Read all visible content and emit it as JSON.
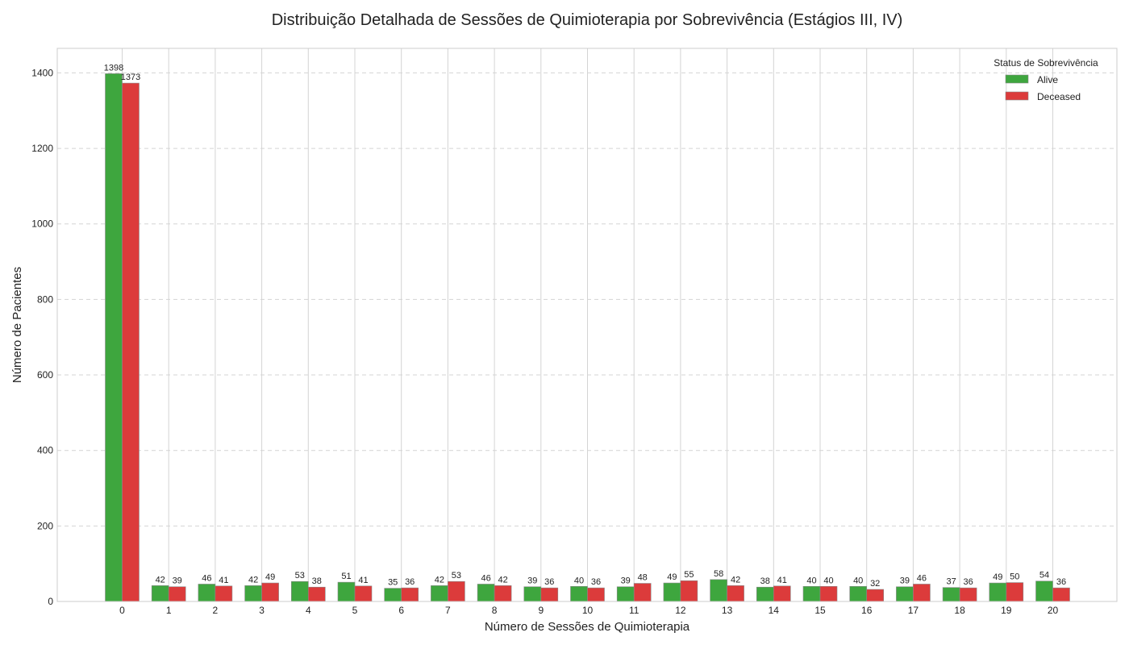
{
  "chart_data": {
    "type": "bar",
    "title": "Distribuição Detalhada de Sessões de Quimioterapia por Sobrevivência (Estágios III, IV)",
    "xlabel": "Número de Sessões de Quimioterapia",
    "ylabel": "Número de Pacientes",
    "categories": [
      "0",
      "1",
      "2",
      "3",
      "4",
      "5",
      "6",
      "7",
      "8",
      "9",
      "10",
      "11",
      "12",
      "13",
      "14",
      "15",
      "16",
      "17",
      "18",
      "19",
      "20"
    ],
    "series": [
      {
        "name": "Alive",
        "color": "#3ea63e",
        "values": [
          1398,
          42,
          46,
          42,
          53,
          51,
          35,
          42,
          46,
          39,
          40,
          39,
          49,
          58,
          38,
          40,
          40,
          39,
          37,
          49,
          54
        ]
      },
      {
        "name": "Deceased",
        "color": "#dc3b3b",
        "values": [
          1373,
          39,
          41,
          49,
          38,
          41,
          36,
          53,
          42,
          36,
          36,
          48,
          55,
          42,
          41,
          40,
          32,
          46,
          36,
          50,
          36
        ]
      }
    ],
    "ylim": [
      0,
      1465
    ],
    "yticks": [
      0,
      200,
      400,
      600,
      800,
      1000,
      1200,
      1400
    ],
    "legend": {
      "title": "Status de Sobrevivência",
      "position": "top-right"
    },
    "grid": {
      "x": true,
      "y": true,
      "y_style": "dashed"
    }
  }
}
